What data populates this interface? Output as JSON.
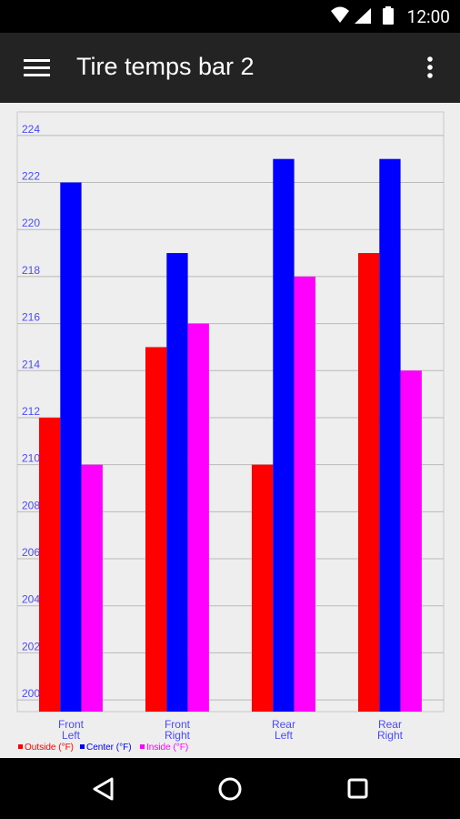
{
  "status_bar": {
    "time": "12:00",
    "icons": [
      "wifi-icon",
      "cellular-signal-icon",
      "battery-icon"
    ]
  },
  "app_bar": {
    "title": "Tire temps bar 2",
    "menu_icon": "hamburger-menu-icon",
    "overflow_icon": "overflow-menu-icon"
  },
  "nav_bar": {
    "icons": [
      "back-icon",
      "home-icon",
      "recents-icon"
    ]
  },
  "colors": {
    "outside": "#ff0000",
    "center": "#0000ff",
    "inside": "#ff00ff",
    "axis_text": "#4a4aff"
  },
  "chart_data": {
    "type": "bar",
    "categories": [
      [
        "Front",
        "Left"
      ],
      [
        "Front",
        "Right"
      ],
      [
        "Rear",
        "Left"
      ],
      [
        "Rear",
        "Right"
      ]
    ],
    "series": [
      {
        "name": "Outside (°F)",
        "values": [
          212,
          215,
          210,
          219
        ]
      },
      {
        "name": "Center (°F)",
        "values": [
          222,
          219,
          223,
          223
        ]
      },
      {
        "name": "Inside (°F)",
        "values": [
          210,
          216,
          218,
          214
        ]
      }
    ],
    "yticks": [
      "200",
      "202",
      "204",
      "206",
      "208",
      "210",
      "212",
      "214",
      "216",
      "218",
      "220",
      "222",
      "224"
    ],
    "ylim": [
      199.5,
      225
    ],
    "grid": true,
    "legend_position": "bottom-left"
  }
}
